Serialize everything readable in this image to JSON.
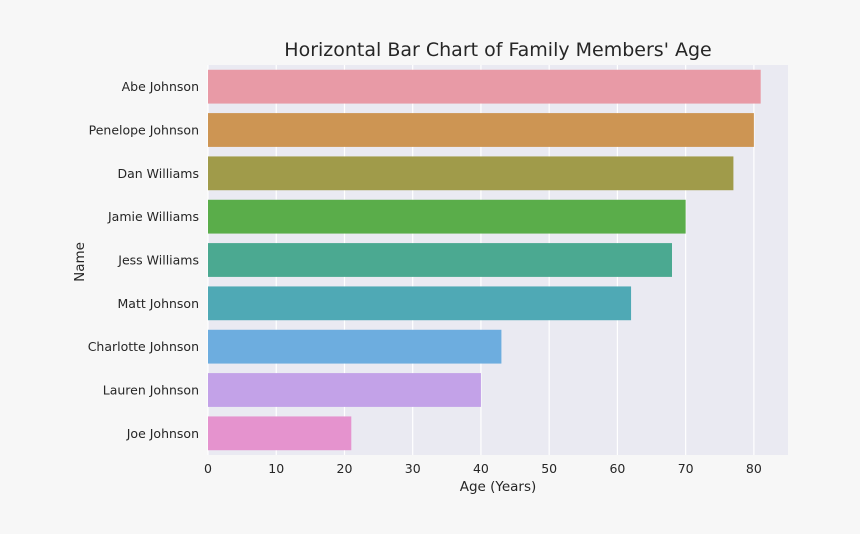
{
  "chart_data": {
    "type": "bar",
    "orientation": "horizontal",
    "title": "Horizontal Bar Chart of Family Members' Age",
    "xlabel": "Age (Years)",
    "ylabel": "Name",
    "categories": [
      "Abe Johnson",
      "Penelope Johnson",
      "Dan Williams",
      "Jamie Williams",
      "Jess Williams",
      "Matt Johnson",
      "Charlotte Johnson",
      "Lauren Johnson",
      "Joe Johnson"
    ],
    "values": [
      81,
      80,
      77,
      70,
      68,
      62,
      43,
      40,
      21
    ],
    "colors": [
      "#e89aa6",
      "#cd9553",
      "#a09b4a",
      "#5aad4a",
      "#4ba991",
      "#4fa9b5",
      "#6daddf",
      "#c3a2e8",
      "#e593ce"
    ],
    "xlim": [
      0,
      85
    ],
    "xticks": [
      0,
      10,
      20,
      30,
      40,
      50,
      60,
      70,
      80
    ],
    "grid": true,
    "plot_background": "#eaeaf2",
    "page_background": "#f7f7f7"
  }
}
